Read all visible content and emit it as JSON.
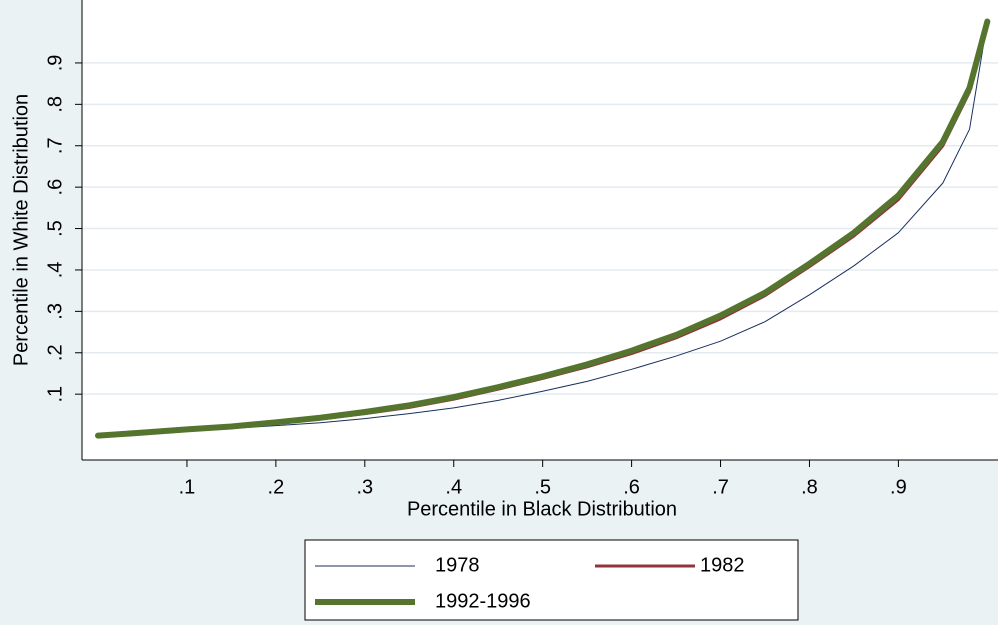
{
  "chart_data": {
    "type": "line",
    "x_label": "Percentile in Black Distribution",
    "y_label": "Percentile in White Distribution",
    "x": [
      0,
      0.05,
      0.1,
      0.15,
      0.2,
      0.25,
      0.3,
      0.35,
      0.4,
      0.45,
      0.5,
      0.55,
      0.6,
      0.65,
      0.7,
      0.75,
      0.8,
      0.85,
      0.9,
      0.95,
      0.98,
      1
    ],
    "series": [
      {
        "name": "1978",
        "color": "#1a2f5e",
        "width": 1,
        "values": [
          0,
          0.005,
          0.011,
          0.017,
          0.024,
          0.031,
          0.041,
          0.053,
          0.067,
          0.085,
          0.107,
          0.131,
          0.16,
          0.192,
          0.228,
          0.275,
          0.34,
          0.41,
          0.49,
          0.61,
          0.74,
          1
        ]
      },
      {
        "name": "1982",
        "color": "#90353b",
        "width": 3,
        "values": [
          0,
          0.006,
          0.013,
          0.02,
          0.029,
          0.04,
          0.053,
          0.068,
          0.088,
          0.112,
          0.138,
          0.166,
          0.198,
          0.236,
          0.282,
          0.338,
          0.408,
          0.482,
          0.57,
          0.7,
          0.83,
          1
        ]
      },
      {
        "name": "1992-1996",
        "color": "#55752f",
        "width": 6,
        "values": [
          0,
          0.007,
          0.015,
          0.022,
          0.032,
          0.043,
          0.057,
          0.073,
          0.093,
          0.117,
          0.143,
          0.172,
          0.205,
          0.243,
          0.29,
          0.345,
          0.415,
          0.49,
          0.58,
          0.71,
          0.84,
          1
        ]
      }
    ],
    "xlim": [
      -0.018,
      1.012
    ],
    "ylim": [
      -0.059,
      1.052
    ],
    "xticks": [
      {
        "value": 0.1,
        "label": ".1"
      },
      {
        "value": 0.2,
        "label": ".2"
      },
      {
        "value": 0.3,
        "label": ".3"
      },
      {
        "value": 0.4,
        "label": ".4"
      },
      {
        "value": 0.5,
        "label": ".5"
      },
      {
        "value": 0.6,
        "label": ".6"
      },
      {
        "value": 0.7,
        "label": ".7"
      },
      {
        "value": 0.8,
        "label": ".8"
      },
      {
        "value": 0.9,
        "label": ".9"
      }
    ],
    "yticks": [
      {
        "value": 0.1,
        "label": ".1"
      },
      {
        "value": 0.2,
        "label": ".2"
      },
      {
        "value": 0.3,
        "label": ".3"
      },
      {
        "value": 0.4,
        "label": ".4"
      },
      {
        "value": 0.5,
        "label": ".5"
      },
      {
        "value": 0.6,
        "label": ".6"
      },
      {
        "value": 0.7,
        "label": ".7"
      },
      {
        "value": 0.8,
        "label": ".8"
      },
      {
        "value": 0.9,
        "label": ".9"
      }
    ],
    "grid": true,
    "legend": "bottom"
  }
}
